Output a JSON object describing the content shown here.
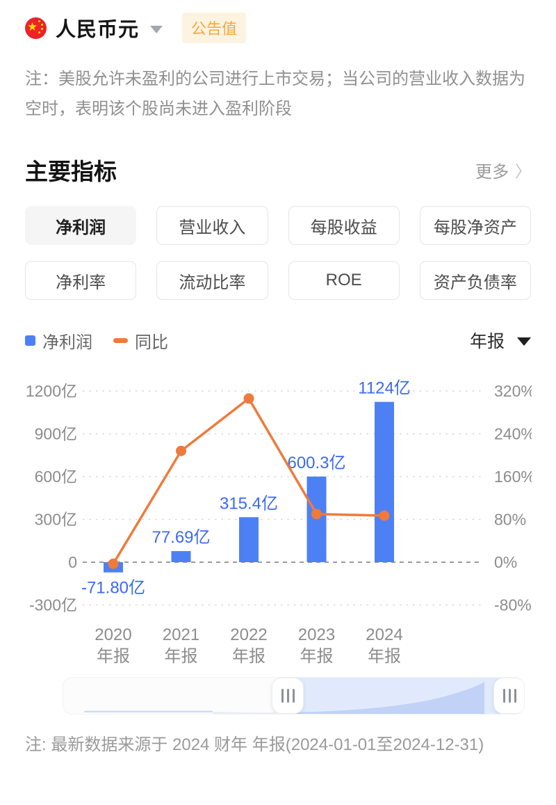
{
  "header": {
    "currency": "人民币元",
    "badge": "公告值"
  },
  "note_top": "注：美股允许未盈利的公司进行上市交易；当公司的营业收入数据为空时，表明该个股尚未进入盈利阶段",
  "section": {
    "title": "主要指标",
    "more": "更多"
  },
  "icons": {
    "currency_caret": "caret-down",
    "more_chevron_glyph": "〉",
    "period_caret": "caret-down",
    "handle_grip": "grip-vertical"
  },
  "tabs": [
    {
      "label": "净利润",
      "selected": true
    },
    {
      "label": "营业收入",
      "selected": false
    },
    {
      "label": "每股收益",
      "selected": false
    },
    {
      "label": "每股净资产",
      "selected": false
    },
    {
      "label": "净利率",
      "selected": false
    },
    {
      "label": "流动比率",
      "selected": false
    },
    {
      "label": "ROE",
      "selected": false
    },
    {
      "label": "资产负债率",
      "selected": false
    }
  ],
  "period_selector": {
    "value": "年报"
  },
  "chart_data": {
    "type": "bar",
    "subtype": "bar+line combo",
    "categories": [
      "2020",
      "2021",
      "2022",
      "2023",
      "2024"
    ],
    "category_line2": "年报",
    "series": [
      {
        "name": "净利润",
        "type": "bar",
        "axis": "left",
        "unit": "亿",
        "values": [
          -71.8,
          77.69,
          315.4,
          600.3,
          1124
        ],
        "data_labels": [
          "-71.80亿",
          "77.69亿",
          "315.4亿",
          "600.3亿",
          "1124亿"
        ],
        "color": "#4e80f5",
        "label_color": "#3a6af1"
      },
      {
        "name": "同比",
        "type": "line",
        "axis": "right",
        "unit": "%",
        "values": [
          -3,
          208,
          306,
          90,
          87
        ],
        "note": "line values are unlabeled on chart; estimated from marker positions vs right axis",
        "color": "#ef7a3c"
      }
    ],
    "left_axis": {
      "unit": "亿",
      "ticks": [
        1200,
        900,
        600,
        300,
        0,
        -300
      ],
      "tick_labels": [
        "1200亿",
        "900亿",
        "600亿",
        "300亿",
        "0",
        "-300亿"
      ],
      "max": 1200,
      "min": -300
    },
    "right_axis": {
      "unit": "%",
      "ticks": [
        320,
        240,
        160,
        80,
        0,
        -80
      ],
      "tick_labels": [
        "320%",
        "240%",
        "160%",
        "80%",
        "0%",
        "-80%"
      ],
      "max": 320,
      "min": -80
    },
    "grid": {
      "horizontal": true,
      "style": "dotted",
      "zero_line_style": "dashed"
    },
    "legend": {
      "position": "top-left",
      "entries": [
        "净利润",
        "同比"
      ]
    }
  },
  "note_bottom": "注: 最新数据来源于 2024 财年 年报(2024-01-01至2024-12-31)"
}
